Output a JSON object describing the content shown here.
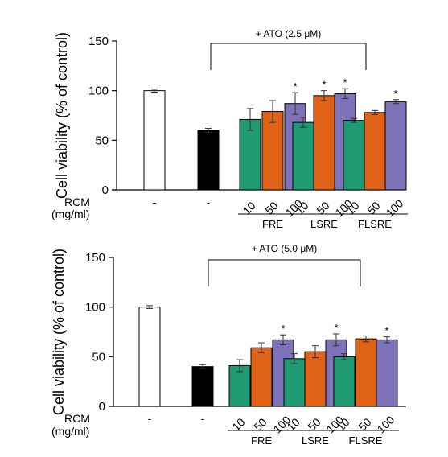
{
  "colors": {
    "control": "#ffffff",
    "ato": "#000000",
    "dose10": "#1f9a73",
    "dose50": "#e06216",
    "dose100": "#7e72b9",
    "axis": "#000000"
  },
  "chart_data": [
    {
      "type": "bar",
      "ylabel": "Cell viability (% of control)",
      "ylim": [
        0,
        150
      ],
      "yticks": [
        0,
        50,
        100,
        150
      ],
      "annotation": "+ ATO (2.5 μM)",
      "xlabel_row": [
        "RCM",
        "(mg/ml)"
      ],
      "bars": [
        {
          "category": "-",
          "value": 100,
          "error": 1.5,
          "color": "control",
          "sig": ""
        },
        {
          "category": "-",
          "value": 60,
          "error": 2,
          "color": "ato",
          "sig": ""
        },
        {
          "group": "FRE",
          "category": "10",
          "value": 71,
          "error": 11,
          "color": "dose10",
          "sig": ""
        },
        {
          "group": "FRE",
          "category": "50",
          "value": 79,
          "error": 11,
          "color": "dose50",
          "sig": ""
        },
        {
          "group": "FRE",
          "category": "100",
          "value": 87,
          "error": 11,
          "color": "dose100",
          "sig": "*"
        },
        {
          "group": "LSRE",
          "category": "10",
          "value": 68,
          "error": 5,
          "color": "dose10",
          "sig": ""
        },
        {
          "group": "LSRE",
          "category": "50",
          "value": 95,
          "error": 5,
          "color": "dose50",
          "sig": "*"
        },
        {
          "group": "LSRE",
          "category": "100",
          "value": 97,
          "error": 5,
          "color": "dose100",
          "sig": "*"
        },
        {
          "group": "FLSRE",
          "category": "10",
          "value": 70,
          "error": 2,
          "color": "dose10",
          "sig": ""
        },
        {
          "group": "FLSRE",
          "category": "50",
          "value": 78,
          "error": 2,
          "color": "dose50",
          "sig": ""
        },
        {
          "group": "FLSRE",
          "category": "100",
          "value": 89,
          "error": 2,
          "color": "dose100",
          "sig": "*"
        }
      ],
      "groups": [
        "FRE",
        "LSRE",
        "FLSRE"
      ]
    },
    {
      "type": "bar",
      "ylabel": "Cell viability (% of control)",
      "ylim": [
        0,
        150
      ],
      "yticks": [
        0,
        50,
        100,
        150
      ],
      "annotation": "+ ATO (5.0 μM)",
      "xlabel_row": [
        "RCM",
        "(mg/ml)"
      ],
      "bars": [
        {
          "category": "-",
          "value": 100,
          "error": 1.5,
          "color": "control",
          "sig": ""
        },
        {
          "category": "-",
          "value": 40,
          "error": 2,
          "color": "ato",
          "sig": ""
        },
        {
          "group": "FRE",
          "category": "10",
          "value": 41,
          "error": 6,
          "color": "dose10",
          "sig": ""
        },
        {
          "group": "FRE",
          "category": "50",
          "value": 59,
          "error": 5,
          "color": "dose50",
          "sig": ""
        },
        {
          "group": "FRE",
          "category": "100",
          "value": 67,
          "error": 5,
          "color": "dose100",
          "sig": "*"
        },
        {
          "group": "LSRE",
          "category": "10",
          "value": 48,
          "error": 5,
          "color": "dose10",
          "sig": ""
        },
        {
          "group": "LSRE",
          "category": "50",
          "value": 55,
          "error": 6,
          "color": "dose50",
          "sig": ""
        },
        {
          "group": "LSRE",
          "category": "100",
          "value": 67,
          "error": 6,
          "color": "dose100",
          "sig": "*"
        },
        {
          "group": "FLSRE",
          "category": "10",
          "value": 50,
          "error": 3,
          "color": "dose10",
          "sig": ""
        },
        {
          "group": "FLSRE",
          "category": "50",
          "value": 68,
          "error": 3,
          "color": "dose50",
          "sig": ""
        },
        {
          "group": "FLSRE",
          "category": "100",
          "value": 67,
          "error": 3,
          "color": "dose100",
          "sig": "*"
        }
      ],
      "groups": [
        "FRE",
        "LSRE",
        "FLSRE"
      ]
    }
  ]
}
